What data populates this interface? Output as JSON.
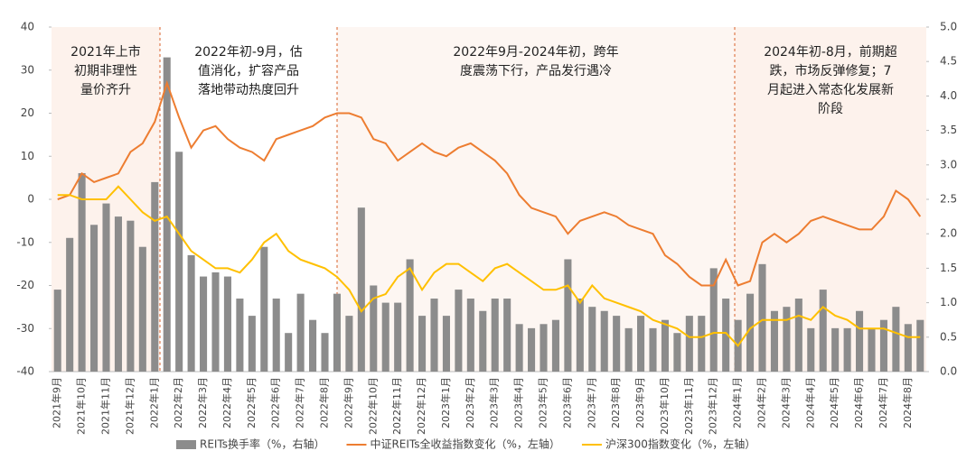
{
  "chart_data": {
    "type": "bar_line",
    "categories": [
      "2021年9月",
      null,
      "2021年10月",
      null,
      "2021年11月",
      null,
      "2021年12月",
      null,
      "2022年1月",
      null,
      "2022年2月",
      null,
      "2022年3月",
      null,
      "2022年4月",
      null,
      "2022年5月",
      null,
      "2022年6月",
      null,
      "2022年7月",
      null,
      "2022年8月",
      null,
      "2022年9月",
      null,
      "2022年10月",
      null,
      "2022年11月",
      null,
      "2022年12月",
      null,
      "2023年1月",
      null,
      "2023年2月",
      null,
      "2023年3月",
      null,
      "2023年4月",
      null,
      "2023年5月",
      null,
      "2023年6月",
      null,
      "2023年7月",
      null,
      "2023年8月",
      null,
      "2023年9月",
      null,
      "2023年10月",
      null,
      "2023年11月",
      null,
      "2023年12月",
      null,
      "2024年1月",
      null,
      "2024年2月",
      null,
      "2024年3月",
      null,
      "2024年4月",
      null,
      "2024年5月",
      null,
      "2024年6月",
      null,
      "2024年7月",
      null,
      "2024年8月",
      null
    ],
    "series": [
      {
        "name": "REITs换手率（%，右轴）",
        "color": "#8c8c8c",
        "kind": "bar",
        "axis": "y2",
        "values": [
          1.19,
          1.94,
          2.88,
          2.13,
          2.44,
          2.25,
          2.19,
          1.81,
          2.75,
          4.56,
          3.19,
          1.69,
          1.38,
          1.44,
          1.38,
          1.06,
          0.81,
          1.81,
          1.06,
          0.56,
          1.13,
          0.75,
          0.56,
          1.13,
          0.81,
          2.38,
          1.25,
          1.0,
          1.0,
          1.63,
          0.81,
          1.06,
          0.81,
          1.19,
          1.06,
          0.88,
          1.06,
          1.06,
          0.69,
          0.63,
          0.69,
          0.75,
          1.63,
          1.06,
          0.94,
          0.88,
          0.81,
          0.63,
          0.81,
          0.63,
          0.75,
          0.56,
          0.81,
          0.81,
          1.5,
          1.06,
          0.75,
          1.13,
          1.56,
          0.88,
          0.94,
          1.06,
          0.63,
          1.19,
          0.63,
          0.63,
          0.88,
          0.63,
          0.75,
          0.94,
          0.69,
          0.75
        ]
      },
      {
        "name": "中证REITs全收益指数变化（%，左轴）",
        "color": "#ed7d31",
        "kind": "line",
        "values": [
          0,
          1,
          6,
          4,
          5,
          6,
          11,
          13,
          18,
          27,
          19,
          12,
          16,
          17,
          14,
          12,
          11,
          9,
          14,
          15,
          16,
          17,
          19,
          20,
          20,
          19,
          14,
          13,
          9,
          11,
          13,
          11,
          10,
          12,
          13,
          11,
          9,
          6,
          1,
          -2,
          -3,
          -4,
          -8,
          -5,
          -4,
          -3,
          -4,
          -6,
          -7,
          -8,
          -13,
          -15,
          -18,
          -20,
          -20,
          -14,
          -20,
          -19,
          -10,
          -8,
          -10,
          -8,
          -5,
          -4,
          -5,
          -6,
          -7,
          -7,
          -4,
          2,
          0,
          -4
        ]
      },
      {
        "name": "沪深300指数变化（%，左轴）",
        "color": "#ffc000",
        "kind": "line",
        "values": [
          1,
          1,
          0,
          0,
          0,
          3,
          0,
          -3,
          -5,
          -4,
          -8,
          -12,
          -14,
          -16,
          -16,
          -17,
          -14,
          -10,
          -8,
          -12,
          -14,
          -15,
          -16,
          -18,
          -21,
          -26,
          -23,
          -22,
          -18,
          -16,
          -21,
          -17,
          -15,
          -15,
          -17,
          -19,
          -16,
          -15,
          -17,
          -19,
          -21,
          -21,
          -20,
          -24,
          -20,
          -23,
          -24,
          -25,
          -26,
          -28,
          -29,
          -30,
          -32,
          -32,
          -31,
          -31,
          -34,
          -30,
          -28,
          -28,
          -28,
          -27,
          -28,
          -25,
          -27,
          -28,
          -30,
          -30,
          -30,
          -31,
          -32,
          -32
        ]
      }
    ],
    "ylim": [
      -40,
      40
    ],
    "yticks": [
      -40,
      -30,
      -20,
      -10,
      0,
      10,
      20,
      30,
      40
    ],
    "y2lim": [
      0,
      5
    ],
    "y2ticks": [
      {
        "value": 0,
        "label": "0.0"
      },
      0.5,
      {
        "value": 1,
        "label": "1.0"
      },
      1.5,
      {
        "value": 2,
        "label": "2.0"
      },
      2.5,
      {
        "value": 3,
        "label": "3.0"
      },
      3.5,
      {
        "value": 4,
        "label": "4.0"
      },
      4.5,
      {
        "value": 5,
        "label": "5.0"
      }
    ],
    "annotations": [
      [
        "2021年上市",
        "初期非理性",
        "量价齐升"
      ],
      [
        "2022年初-9月，估",
        "值消化，扩容产品",
        "落地带动热度回升"
      ],
      [
        "2022年9月-2024年初，跨年",
        "度震荡下行，产品发行遇冷"
      ],
      [
        "2024年初-8月，前期超",
        "跌，市场反弹修复；7",
        "月起进入常态化发展新",
        "阶段"
      ]
    ]
  }
}
